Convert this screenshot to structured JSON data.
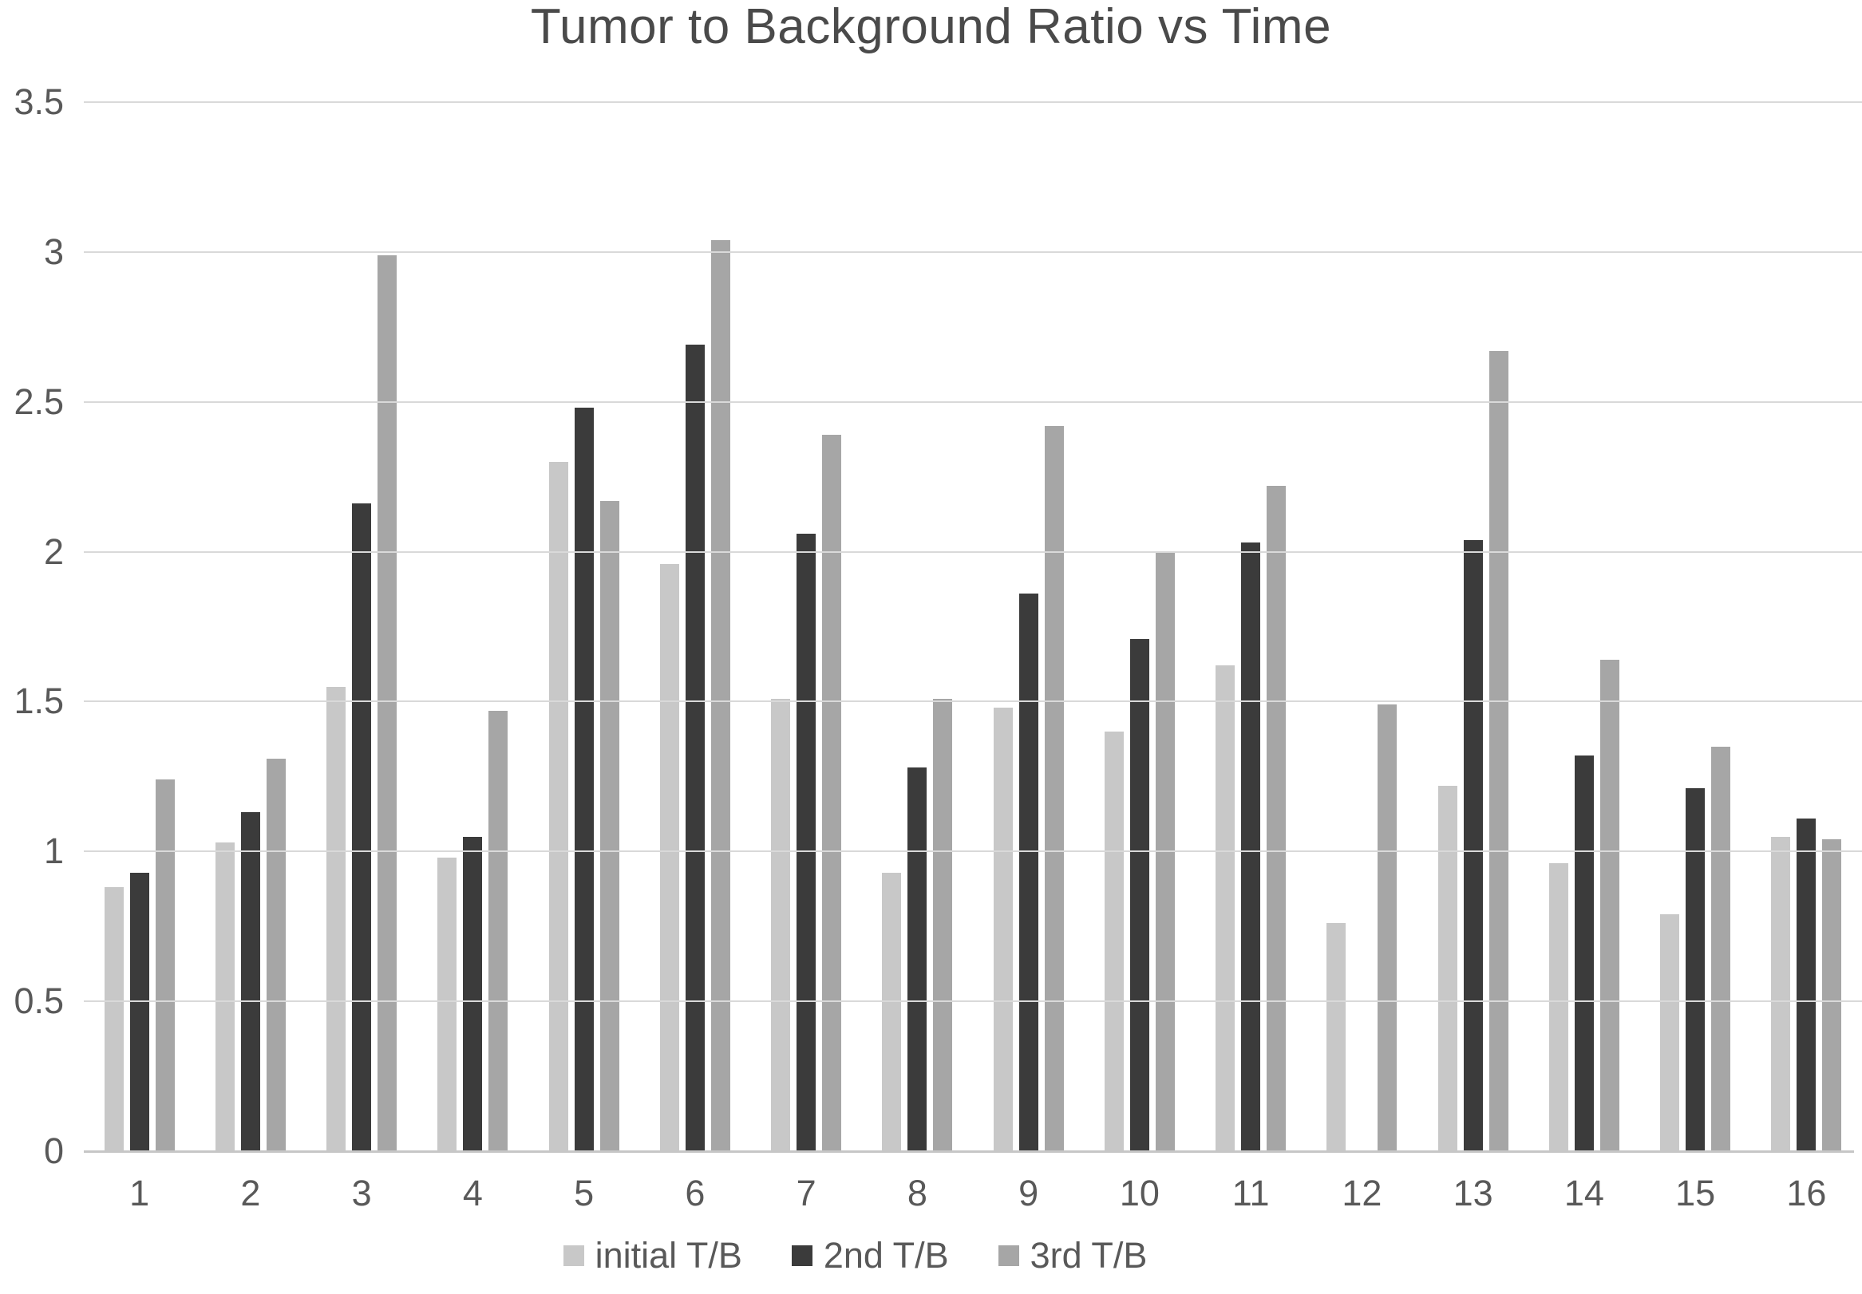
{
  "chart_data": {
    "type": "bar",
    "title": "Tumor to Background Ratio vs Time",
    "categories": [
      "1",
      "2",
      "3",
      "4",
      "5",
      "6",
      "7",
      "8",
      "9",
      "10",
      "11",
      "12",
      "13",
      "14",
      "15",
      "16"
    ],
    "series": [
      {
        "name": "initial T/B",
        "color": "#c8c8c8",
        "values": [
          0.88,
          1.03,
          1.55,
          0.98,
          2.3,
          1.96,
          1.51,
          0.93,
          1.48,
          1.4,
          1.62,
          0.76,
          1.22,
          0.96,
          0.79,
          1.05
        ]
      },
      {
        "name": "2nd T/B",
        "color": "#3b3b3b",
        "values": [
          0.93,
          1.13,
          2.16,
          1.05,
          2.48,
          2.69,
          2.06,
          1.28,
          1.86,
          1.71,
          2.03,
          null,
          2.04,
          1.32,
          1.21,
          1.11
        ]
      },
      {
        "name": "3rd T/B",
        "color": "#a6a6a6",
        "values": [
          1.24,
          1.31,
          2.99,
          1.47,
          2.17,
          3.04,
          2.39,
          1.51,
          2.42,
          2.0,
          2.22,
          1.49,
          2.67,
          1.64,
          1.35,
          1.04
        ]
      }
    ],
    "xlabel": "",
    "ylabel": "",
    "ylim": [
      0,
      3.5
    ],
    "y_tick_labels": [
      "0",
      "0.5",
      "1",
      "1.5",
      "2",
      "2.5",
      "3",
      "3.5"
    ],
    "grid": true,
    "legend_position": "bottom",
    "colors": {
      "gridline": "#d9d9d9",
      "axis_line": "#c6c6c6",
      "tick_text": "#595959",
      "title_text": "#4a4a4a"
    }
  }
}
